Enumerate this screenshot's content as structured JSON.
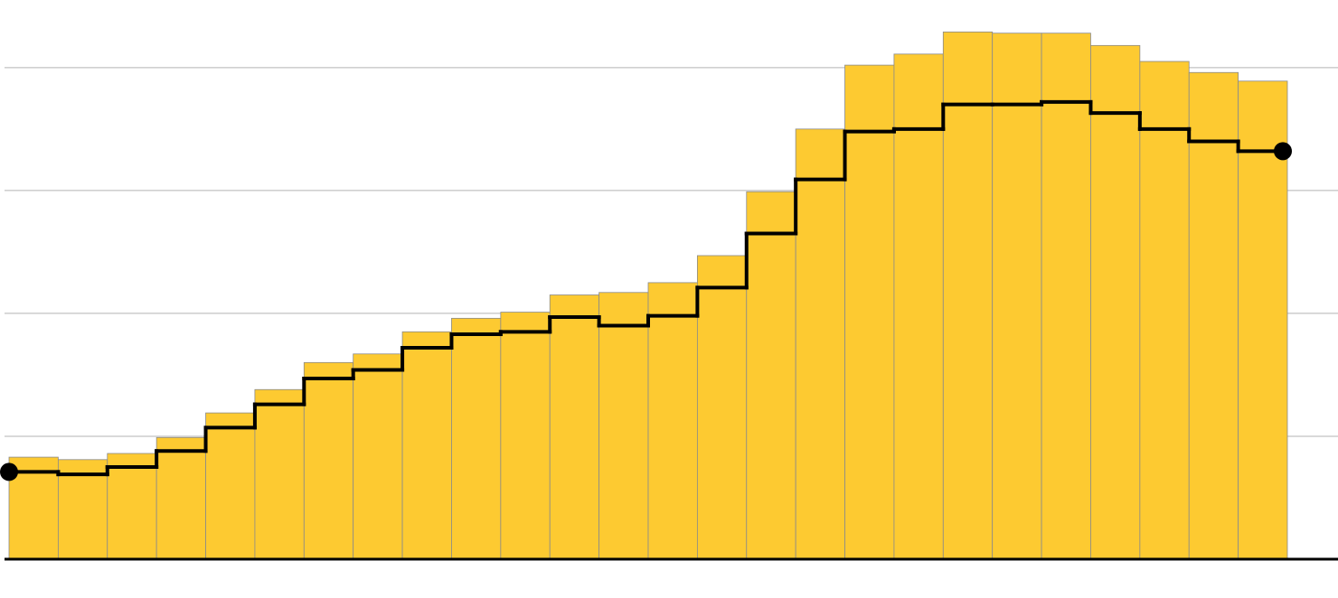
{
  "chart_data": {
    "type": "bar",
    "categories": [
      null,
      null,
      null,
      null,
      null,
      null,
      null,
      null,
      null,
      null,
      null,
      null,
      null,
      null,
      null,
      null,
      null,
      null,
      null,
      null,
      null,
      null,
      null,
      null,
      null,
      null
    ],
    "series": [
      {
        "type": "bar",
        "color": "#fdca31",
        "values": [
          0.83,
          0.81,
          0.86,
          0.99,
          1.19,
          1.38,
          1.6,
          1.67,
          1.85,
          1.96,
          2.01,
          2.15,
          2.17,
          2.25,
          2.47,
          2.99,
          3.5,
          4.02,
          4.11,
          4.29,
          4.28,
          4.28,
          4.18,
          4.05,
          3.96,
          3.89
        ]
      },
      {
        "type": "step",
        "color": "#000000",
        "values": [
          0.71,
          0.69,
          0.75,
          0.88,
          1.07,
          1.26,
          1.47,
          1.54,
          1.72,
          1.83,
          1.85,
          1.97,
          1.9,
          1.98,
          2.21,
          2.65,
          3.09,
          3.48,
          3.5,
          3.7,
          3.7,
          3.72,
          3.63,
          3.5,
          3.4,
          3.32
        ]
      }
    ],
    "ylim": [
      0,
      4.55
    ],
    "yticks": [
      1,
      2,
      3,
      4
    ],
    "grid": true
  }
}
